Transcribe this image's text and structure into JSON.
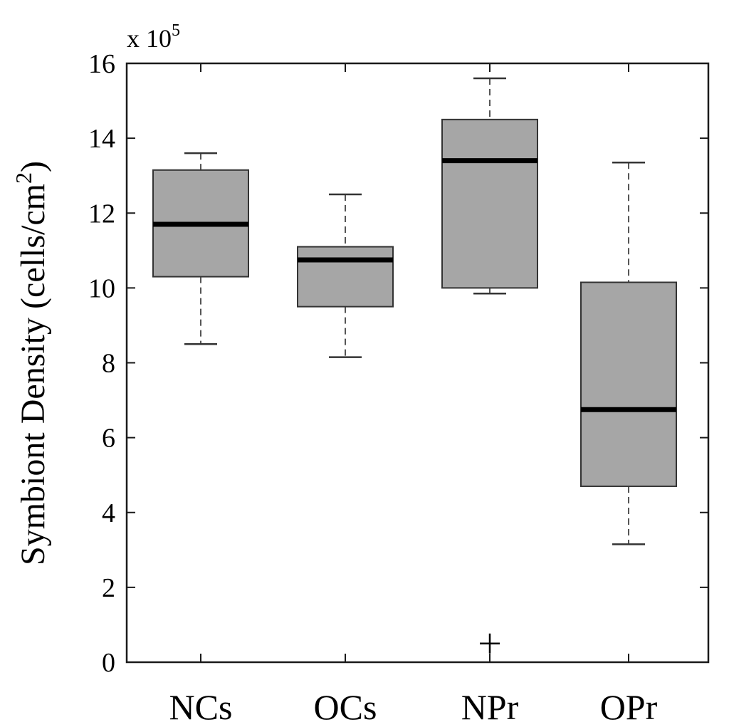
{
  "chart_data": {
    "type": "box",
    "ylabel": "Symbiont Density (cells/cm",
    "ylabel_sup": "2",
    "ylabel_close": ")",
    "exponent_label": "x 10",
    "exponent_power": "5",
    "ylim": [
      0,
      16
    ],
    "yticks": [
      0,
      2,
      4,
      6,
      8,
      10,
      12,
      14,
      16
    ],
    "categories": [
      "NCs",
      "OCs",
      "NPr",
      "OPr"
    ],
    "boxes": [
      {
        "category": "NCs",
        "whisker_low": 8.5,
        "q1": 10.3,
        "median": 11.7,
        "q3": 13.15,
        "whisker_high": 13.6,
        "outliers": []
      },
      {
        "category": "OCs",
        "whisker_low": 8.15,
        "q1": 9.5,
        "median": 10.75,
        "q3": 11.1,
        "whisker_high": 12.5,
        "outliers": []
      },
      {
        "category": "NPr",
        "whisker_low": 9.85,
        "q1": 10.0,
        "median": 13.4,
        "q3": 14.5,
        "whisker_high": 15.6,
        "outliers": [
          0.5
        ]
      },
      {
        "category": "OPr",
        "whisker_low": 3.15,
        "q1": 4.7,
        "median": 6.75,
        "q3": 10.15,
        "whisker_high": 13.35,
        "outliers": []
      }
    ],
    "colors": {
      "box_fill": "#a6a6a6",
      "median": "#000000",
      "whisker": "#555555",
      "axis": "#1a1a1a"
    }
  }
}
